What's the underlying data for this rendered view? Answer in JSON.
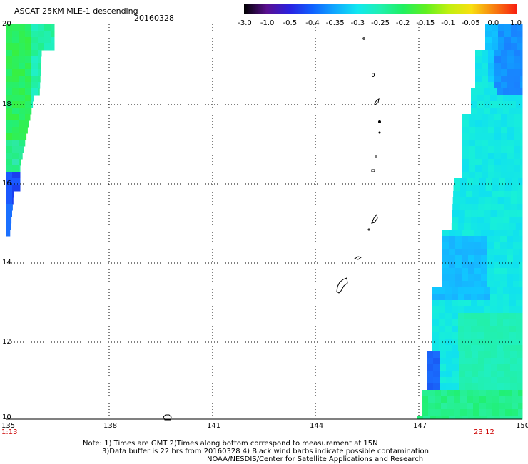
{
  "header": {
    "title": "ASCAT 25KM MLE-1 descending",
    "date": "20160328"
  },
  "colorbar": {
    "labels": [
      "-3.0",
      "-1.0",
      "-0.5",
      "-0.4",
      "-0.35",
      "-0.3",
      "-0.25",
      "-0.2",
      "-0.15",
      "-0.1",
      "-0.05",
      "0.0",
      "1.0"
    ],
    "colors": [
      "#000000",
      "#5a1090",
      "#2a20e0",
      "#1060ff",
      "#10a8ff",
      "#10e8f0",
      "#20f0b0",
      "#20f060",
      "#60f020",
      "#c0f010",
      "#f8e010",
      "#f88010",
      "#f82010"
    ]
  },
  "map": {
    "lon_labels": [
      "135",
      "138",
      "141",
      "144",
      "147",
      "150"
    ],
    "lat_labels": [
      "20",
      "18",
      "16",
      "14",
      "12",
      "10"
    ],
    "lon_range": [
      135,
      150
    ],
    "lat_range": [
      10,
      20
    ],
    "time_start": "1:13",
    "time_end": "23:12"
  },
  "notes": [
    "Note: 1) Times are GMT 2)Times along bottom correspond to measurement at 15N",
    "3)Data buffer is 22 hrs from 20160328 4) Black wind barbs indicate possible contamination",
    "NOAA/NESDIS/Center for Satellite Applications and Research"
  ]
}
